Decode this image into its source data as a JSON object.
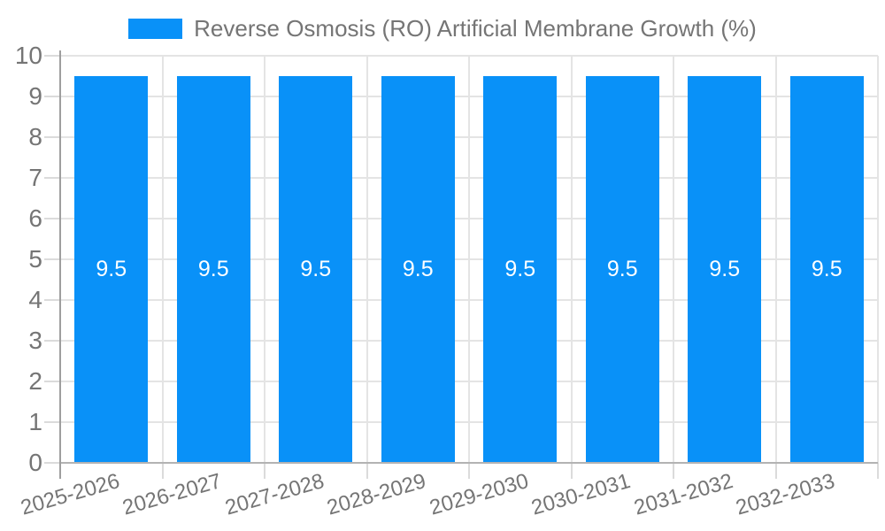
{
  "chart_data": {
    "type": "bar",
    "title": "Reverse Osmosis (RO) Artificial Membrane Growth (%)",
    "categories": [
      "2025-2026",
      "2026-2027",
      "2027-2028",
      "2028-2029",
      "2029-2030",
      "2030-2031",
      "2031-2032",
      "2032-2033"
    ],
    "values": [
      9.5,
      9.5,
      9.5,
      9.5,
      9.5,
      9.5,
      9.5,
      9.5
    ],
    "value_labels": [
      "9.5",
      "9.5",
      "9.5",
      "9.5",
      "9.5",
      "9.5",
      "9.5",
      "9.5"
    ],
    "xlabel": "",
    "ylabel": "",
    "ylim": [
      0,
      10
    ],
    "y_ticks": [
      0,
      1,
      2,
      3,
      4,
      5,
      6,
      7,
      8,
      9,
      10
    ],
    "grid": true,
    "legend_position": "top"
  },
  "colors": {
    "bar": "#0991F8",
    "grid": "#E4E4E4",
    "tick": "#DBDBDB",
    "axis_line": "#9E9E9E",
    "baseline": "#B3B3B3",
    "text": "#757575",
    "value_text": "#FFFFFF",
    "background": "#FFFFFF"
  }
}
